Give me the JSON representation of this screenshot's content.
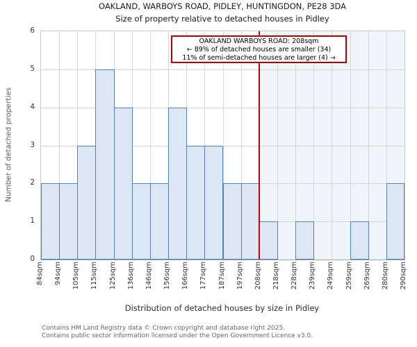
{
  "title": "OAKLAND, WARBOYS ROAD, PIDLEY, HUNTINGDON, PE28 3DA",
  "subtitle": "Size of property relative to detached houses in Pidley",
  "annotation": {
    "line1": "OAKLAND WARBOYS ROAD: 208sqm",
    "line2": "← 89% of detached houses are smaller (34)",
    "line3": "11% of semi-detached houses are larger (4) →"
  },
  "footer": {
    "line1": "Contains HM Land Registry data © Crown copyright and database right 2025.",
    "line2": "Contains public sector information licensed under the Open Government Licence v3.0."
  },
  "chart_data": {
    "type": "bar",
    "title": "OAKLAND, WARBOYS ROAD, PIDLEY, HUNTINGDON, PE28 3DA — Size of property relative to detached houses in Pidley",
    "xlabel": "Distribution of detached houses by size in Pidley",
    "ylabel": "Number of detached properties",
    "bin_edge_labels": [
      "84sqm",
      "94sqm",
      "105sqm",
      "115sqm",
      "125sqm",
      "136sqm",
      "146sqm",
      "156sqm",
      "166sqm",
      "177sqm",
      "187sqm",
      "197sqm",
      "208sqm",
      "218sqm",
      "228sqm",
      "239sqm",
      "249sqm",
      "259sqm",
      "269sqm",
      "280sqm",
      "290sqm"
    ],
    "values": [
      2,
      2,
      3,
      5,
      4,
      2,
      2,
      4,
      3,
      3,
      2,
      2,
      1,
      0,
      1,
      0,
      0,
      1,
      0,
      2
    ],
    "ylim": [
      0,
      6
    ],
    "yticks": [
      0,
      1,
      2,
      3,
      4,
      5,
      6
    ],
    "grid": true,
    "marker": {
      "label": "OAKLAND WARBOYS ROAD",
      "value_label": "208sqm",
      "edge_index": 12,
      "color": "#cc0000"
    },
    "colors": {
      "bar_fill": "#dce6f4",
      "bar_border": "#4f81bd",
      "marker_line": "#cc0000",
      "annotation_border": "#b00000",
      "larger_region_shade": "#f0f4fb",
      "gridline": "#d6d6d6"
    }
  }
}
